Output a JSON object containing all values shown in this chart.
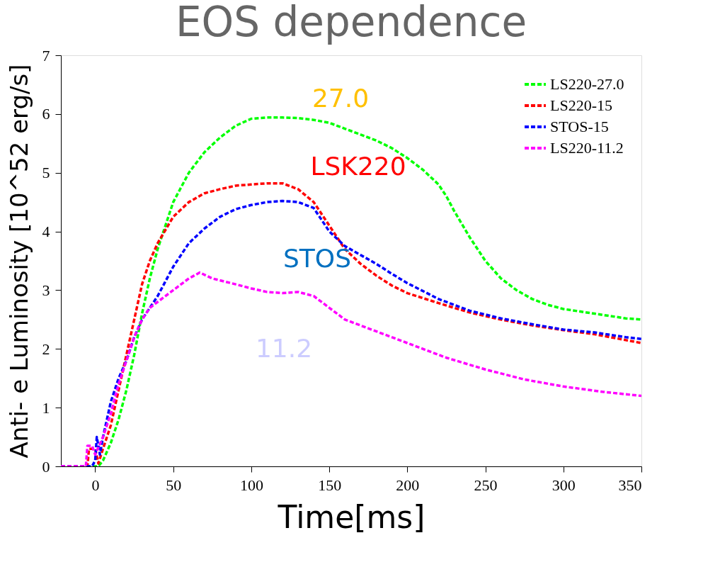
{
  "chart_data": {
    "type": "line",
    "title": "EOS dependence",
    "xlabel": "Time[ms]",
    "ylabel": "Anti- e Luminosity [10^52 erg/s]",
    "xlim": [
      -22,
      350
    ],
    "xticks": [
      0,
      50,
      100,
      150,
      200,
      250,
      300,
      350
    ],
    "ylim": [
      0,
      7
    ],
    "yticks": [
      0,
      1,
      2,
      3,
      4,
      5,
      6,
      7
    ],
    "grid": false,
    "legend": "top right",
    "line_style": "dashed",
    "marker": "none",
    "annotations": [
      "27.0",
      "LSK220",
      "STOS",
      "11.2"
    ],
    "series": [
      {
        "name": "LS220-27.0",
        "color": "#00ff00",
        "x": [
          -22,
          2,
          5,
          10,
          15,
          20,
          25,
          30,
          35,
          40,
          45,
          50,
          60,
          70,
          80,
          90,
          100,
          110,
          120,
          130,
          140,
          150,
          160,
          170,
          180,
          190,
          200,
          210,
          220,
          225,
          230,
          240,
          250,
          260,
          270,
          280,
          290,
          300,
          320,
          340,
          350
        ],
        "values": [
          0,
          0,
          0.1,
          0.4,
          0.8,
          1.3,
          1.9,
          2.6,
          3.2,
          3.7,
          4.1,
          4.5,
          5.0,
          5.35,
          5.6,
          5.8,
          5.92,
          5.94,
          5.94,
          5.93,
          5.9,
          5.85,
          5.75,
          5.65,
          5.55,
          5.42,
          5.25,
          5.05,
          4.8,
          4.6,
          4.35,
          3.9,
          3.5,
          3.2,
          3.0,
          2.85,
          2.75,
          2.68,
          2.6,
          2.52,
          2.5
        ]
      },
      {
        "name": "LS220-15",
        "color": "#ff0000",
        "x": [
          -22,
          -5,
          -4,
          0,
          2,
          5,
          10,
          15,
          20,
          25,
          30,
          35,
          40,
          50,
          60,
          70,
          80,
          90,
          100,
          110,
          120,
          130,
          140,
          150,
          160,
          170,
          180,
          190,
          200,
          220,
          240,
          260,
          280,
          300,
          320,
          340,
          350
        ],
        "values": [
          0,
          0,
          0.3,
          0.3,
          0.05,
          0.3,
          0.7,
          1.3,
          1.9,
          2.5,
          3.1,
          3.5,
          3.8,
          4.25,
          4.5,
          4.65,
          4.72,
          4.78,
          4.8,
          4.82,
          4.82,
          4.72,
          4.5,
          4.1,
          3.7,
          3.45,
          3.25,
          3.08,
          2.95,
          2.78,
          2.62,
          2.5,
          2.4,
          2.32,
          2.25,
          2.15,
          2.1
        ]
      },
      {
        "name": "STOS-15",
        "color": "#0000ff",
        "x": [
          -22,
          -2,
          0,
          1,
          3,
          5,
          10,
          15,
          20,
          25,
          30,
          40,
          50,
          60,
          70,
          80,
          90,
          100,
          110,
          120,
          130,
          140,
          150,
          160,
          170,
          180,
          190,
          200,
          220,
          240,
          260,
          280,
          300,
          320,
          340,
          350
        ],
        "values": [
          0,
          0,
          0.1,
          0.5,
          0.2,
          0.5,
          1.1,
          1.5,
          1.8,
          2.2,
          2.5,
          2.9,
          3.4,
          3.8,
          4.05,
          4.25,
          4.38,
          4.45,
          4.5,
          4.52,
          4.5,
          4.4,
          4.0,
          3.75,
          3.6,
          3.45,
          3.28,
          3.12,
          2.85,
          2.65,
          2.52,
          2.42,
          2.33,
          2.28,
          2.2,
          2.17
        ]
      },
      {
        "name": "LS220-11.2",
        "color": "#ff00ff",
        "x": [
          -22,
          -6,
          -5,
          -2,
          0,
          5,
          10,
          15,
          20,
          25,
          30,
          35,
          40,
          50,
          60,
          67,
          75,
          90,
          100,
          110,
          120,
          130,
          140,
          150,
          160,
          175,
          200,
          225,
          250,
          275,
          300,
          325,
          350
        ],
        "values": [
          0,
          0,
          0.35,
          0.35,
          0.2,
          0.5,
          0.9,
          1.4,
          1.8,
          2.2,
          2.5,
          2.7,
          2.8,
          3.0,
          3.2,
          3.3,
          3.2,
          3.1,
          3.03,
          2.97,
          2.95,
          2.97,
          2.9,
          2.7,
          2.5,
          2.35,
          2.1,
          1.85,
          1.65,
          1.48,
          1.36,
          1.27,
          1.2
        ]
      }
    ]
  }
}
